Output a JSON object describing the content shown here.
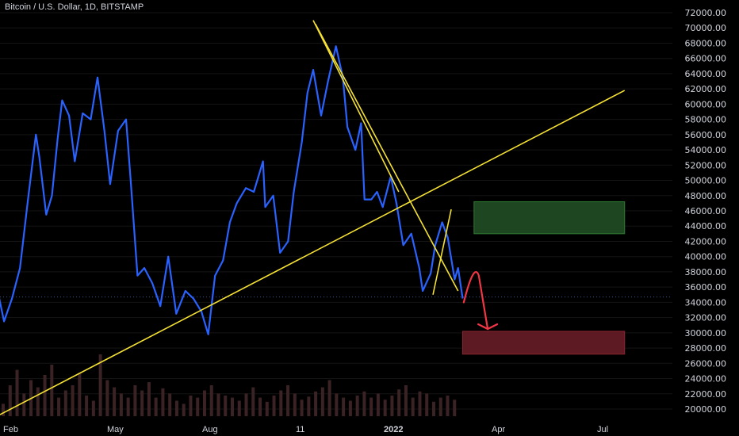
{
  "header": {
    "title": "Bitcoin / U.S. Dollar, 1D, BITSTAMP"
  },
  "colors": {
    "price_line": "#2962ff",
    "trendline": "#f5e133",
    "arrow": "#f23645",
    "green_zone": "#1e4620",
    "red_zone": "#5e1a22",
    "volume": "#3a2225",
    "grid": "#141414",
    "current_price": "#3d4f8f"
  },
  "chart_data": {
    "type": "line",
    "y_axis_ticks": [
      "72000.00",
      "70000.00",
      "68000.00",
      "66000.00",
      "64000.00",
      "62000.00",
      "60000.00",
      "58000.00",
      "56000.00",
      "54000.00",
      "52000.00",
      "50000.00",
      "48000.00",
      "46000.00",
      "44000.00",
      "42000.00",
      "40000.00",
      "38000.00",
      "36000.00",
      "34000.00",
      "32000.00",
      "30000.00",
      "28000.00",
      "26000.00",
      "24000.00",
      "22000.00",
      "20000.00"
    ],
    "x_axis_ticks": [
      "Feb",
      "May",
      "Aug",
      "11",
      "2022",
      "Apr",
      "Jul"
    ],
    "ylim": [
      19000,
      73000
    ],
    "series": [
      {
        "points": [
          [
            "2021-01-15",
            36500
          ],
          [
            "2021-01-22",
            31500
          ],
          [
            "2021-01-29",
            34500
          ],
          [
            "2021-02-05",
            38500
          ],
          [
            "2021-02-12",
            47500
          ],
          [
            "2021-02-19",
            56000
          ],
          [
            "2021-02-22",
            53000
          ],
          [
            "2021-02-28",
            45500
          ],
          [
            "2021-03-05",
            48000
          ],
          [
            "2021-03-10",
            55500
          ],
          [
            "2021-03-14",
            60500
          ],
          [
            "2021-03-20",
            58500
          ],
          [
            "2021-03-25",
            52500
          ],
          [
            "2021-04-01",
            58800
          ],
          [
            "2021-04-08",
            58000
          ],
          [
            "2021-04-14",
            63500
          ],
          [
            "2021-04-20",
            56500
          ],
          [
            "2021-04-25",
            49500
          ],
          [
            "2021-05-02",
            56500
          ],
          [
            "2021-05-09",
            58000
          ],
          [
            "2021-05-13",
            50000
          ],
          [
            "2021-05-19",
            37500
          ],
          [
            "2021-05-25",
            38500
          ],
          [
            "2021-06-01",
            36500
          ],
          [
            "2021-06-08",
            33500
          ],
          [
            "2021-06-15",
            40000
          ],
          [
            "2021-06-22",
            32500
          ],
          [
            "2021-06-30",
            35500
          ],
          [
            "2021-07-07",
            34500
          ],
          [
            "2021-07-14",
            32800
          ],
          [
            "2021-07-20",
            29800
          ],
          [
            "2021-07-26",
            37500
          ],
          [
            "2021-08-02",
            39500
          ],
          [
            "2021-08-08",
            44500
          ],
          [
            "2021-08-14",
            47000
          ],
          [
            "2021-08-22",
            49000
          ],
          [
            "2021-08-29",
            48500
          ],
          [
            "2021-09-06",
            52500
          ],
          [
            "2021-09-08",
            46500
          ],
          [
            "2021-09-15",
            48000
          ],
          [
            "2021-09-21",
            40500
          ],
          [
            "2021-09-28",
            42000
          ],
          [
            "2021-10-03",
            48500
          ],
          [
            "2021-10-10",
            55000
          ],
          [
            "2021-10-15",
            61500
          ],
          [
            "2021-10-20",
            64500
          ],
          [
            "2021-10-27",
            58500
          ],
          [
            "2021-11-02",
            63000
          ],
          [
            "2021-11-09",
            67600
          ],
          [
            "2021-11-15",
            63500
          ],
          [
            "2021-11-19",
            57000
          ],
          [
            "2021-11-26",
            54000
          ],
          [
            "2021-12-01",
            57500
          ],
          [
            "2021-12-04",
            47500
          ],
          [
            "2021-12-10",
            47500
          ],
          [
            "2021-12-15",
            48500
          ],
          [
            "2021-12-20",
            46500
          ],
          [
            "2021-12-27",
            50500
          ],
          [
            "2022-01-01",
            47000
          ],
          [
            "2022-01-07",
            41500
          ],
          [
            "2022-01-14",
            43000
          ],
          [
            "2022-01-21",
            38500
          ],
          [
            "2022-01-24",
            35500
          ],
          [
            "2022-01-31",
            37800
          ],
          [
            "2022-02-04",
            41500
          ],
          [
            "2022-02-10",
            44500
          ],
          [
            "2022-02-15",
            42500
          ],
          [
            "2022-02-21",
            37000
          ],
          [
            "2022-02-24",
            38500
          ],
          [
            "2022-02-28",
            34500
          ]
        ]
      }
    ],
    "current_price": 34700,
    "zones": [
      {
        "x": [
          "2022-03-10",
          "2022-07-20"
        ],
        "y": [
          43000,
          47200
        ],
        "color": "green"
      },
      {
        "x": [
          "2022-02-28",
          "2022-07-20"
        ],
        "y": [
          27200,
          30200
        ],
        "color": "red"
      }
    ],
    "trendlines": [
      {
        "from": [
          "2021-01-15",
          19000
        ],
        "to": [
          "2022-07-20",
          61800
        ]
      },
      {
        "from": [
          "2021-10-20",
          71000
        ],
        "to": [
          "2022-01-03",
          48500
        ]
      },
      {
        "from": [
          "2021-10-22",
          70500
        ],
        "to": [
          "2022-02-24",
          35500
        ]
      },
      {
        "from": [
          "2022-02-02",
          35000
        ],
        "to": [
          "2022-02-18",
          46200
        ]
      }
    ],
    "arrow_path": [
      [
        "2022-03-01",
        34000
      ],
      [
        "2022-03-10",
        37500
      ],
      [
        "2022-03-22",
        30500
      ],
      [
        "2022-03-26",
        31500
      ]
    ],
    "volume": [
      12,
      30,
      45,
      22,
      35,
      28,
      40,
      50,
      18,
      25,
      30,
      42,
      20,
      15,
      60,
      35,
      28,
      22,
      18,
      30,
      25,
      33,
      18,
      27,
      22,
      15,
      12,
      20,
      18,
      25,
      30,
      22,
      20,
      18,
      15,
      22,
      28,
      18,
      14,
      20,
      25,
      30,
      22,
      16,
      19,
      24,
      28,
      35,
      22,
      18,
      15,
      20,
      24,
      18,
      22,
      16,
      20,
      26,
      30,
      18,
      24,
      22,
      14,
      18,
      20,
      16
    ]
  }
}
